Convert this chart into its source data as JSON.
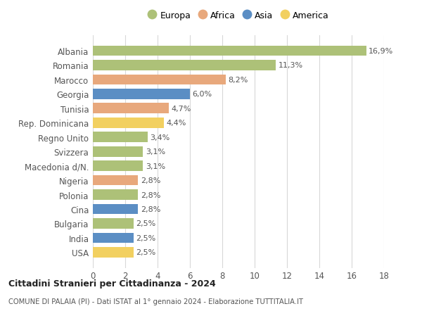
{
  "categories": [
    "Albania",
    "Romania",
    "Marocco",
    "Georgia",
    "Tunisia",
    "Rep. Dominicana",
    "Regno Unito",
    "Svizzera",
    "Macedonia d/N.",
    "Nigeria",
    "Polonia",
    "Cina",
    "Bulgaria",
    "India",
    "USA"
  ],
  "values": [
    16.9,
    11.3,
    8.2,
    6.0,
    4.7,
    4.4,
    3.4,
    3.1,
    3.1,
    2.8,
    2.8,
    2.8,
    2.5,
    2.5,
    2.5
  ],
  "labels": [
    "16,9%",
    "11,3%",
    "8,2%",
    "6,0%",
    "4,7%",
    "4,4%",
    "3,4%",
    "3,1%",
    "3,1%",
    "2,8%",
    "2,8%",
    "2,8%",
    "2,5%",
    "2,5%",
    "2,5%"
  ],
  "continents": [
    "Europa",
    "Europa",
    "Africa",
    "Asia",
    "Africa",
    "America",
    "Europa",
    "Europa",
    "Europa",
    "Africa",
    "Europa",
    "Asia",
    "Europa",
    "Asia",
    "America"
  ],
  "colors": {
    "Europa": "#adc178",
    "Africa": "#e8a87c",
    "Asia": "#5b8ec4",
    "America": "#f2d060"
  },
  "legend_order": [
    "Europa",
    "Africa",
    "Asia",
    "America"
  ],
  "xlim": [
    0,
    18
  ],
  "xticks": [
    0,
    2,
    4,
    6,
    8,
    10,
    12,
    14,
    16,
    18
  ],
  "title": "Cittadini Stranieri per Cittadinanza - 2024",
  "subtitle": "COMUNE DI PALAIA (PI) - Dati ISTAT al 1° gennaio 2024 - Elaborazione TUTTITALIA.IT",
  "background_color": "#ffffff",
  "grid_color": "#d8d8d8",
  "bar_height": 0.72
}
